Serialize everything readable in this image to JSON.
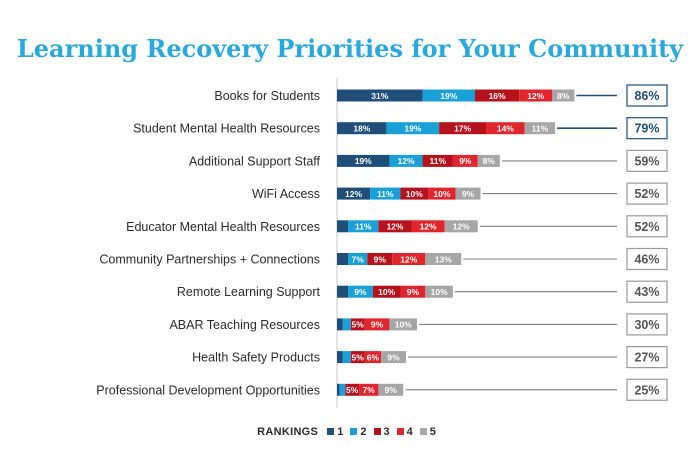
{
  "chart_data": {
    "type": "bar",
    "stacked": true,
    "orientation": "horizontal",
    "title": "Learning Recovery Priorities for Your Community",
    "legend_title": "RANKINGS",
    "legend_position": "bottom",
    "categories": [
      "Books for Students",
      "Student Mental Health Resources",
      "Additional Support Staff",
      "WiFi Access",
      "Educator Mental Health Resources",
      "Community Partnerships + Connections",
      "Remote Learning Support",
      "ABAR Teaching Resources",
      "Health Safety Products",
      "Professional Development Opportunities"
    ],
    "series": [
      {
        "name": "1",
        "color": "#1f4e79",
        "values": [
          31,
          18,
          19,
          12,
          4,
          4,
          4,
          2,
          2,
          1
        ],
        "labels": [
          "31%",
          "18%",
          "19%",
          "12%",
          "",
          "",
          "",
          "",
          "",
          ""
        ]
      },
      {
        "name": "2",
        "color": "#1aa0d8",
        "values": [
          19,
          19,
          12,
          11,
          11,
          7,
          9,
          3,
          3,
          2
        ],
        "labels": [
          "19%",
          "19%",
          "12%",
          "11%",
          "11%",
          "7%",
          "9%",
          "",
          "",
          ""
        ]
      },
      {
        "name": "3",
        "color": "#b5121b",
        "values": [
          16,
          17,
          11,
          10,
          12,
          9,
          10,
          5,
          5,
          5
        ],
        "labels": [
          "16%",
          "17%",
          "11%",
          "10%",
          "12%",
          "9%",
          "10%",
          "5%",
          "5%",
          "5%"
        ]
      },
      {
        "name": "4",
        "color": "#e0262c",
        "values": [
          12,
          14,
          9,
          10,
          12,
          12,
          9,
          9,
          6,
          7
        ],
        "labels": [
          "12%",
          "14%",
          "9%",
          "10%",
          "12%",
          "12%",
          "9%",
          "9%",
          "6%",
          "7%"
        ]
      },
      {
        "name": "5",
        "color": "#a6a6a6",
        "values": [
          8,
          11,
          8,
          9,
          12,
          13,
          10,
          10,
          9,
          9
        ],
        "labels": [
          "8%",
          "11%",
          "8%",
          "9%",
          "12%",
          "13%",
          "10%",
          "10%",
          "9%",
          "9%"
        ]
      }
    ],
    "totals": [
      "86%",
      "79%",
      "59%",
      "52%",
      "52%",
      "46%",
      "43%",
      "30%",
      "27%",
      "25%"
    ],
    "highlighted_total_color": "#1f4e79",
    "xlim": [
      0,
      100
    ]
  }
}
